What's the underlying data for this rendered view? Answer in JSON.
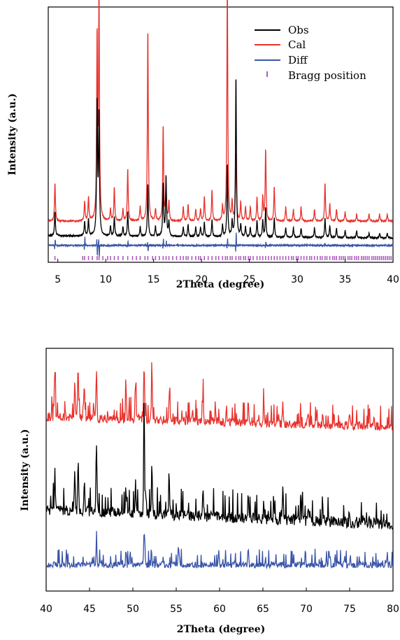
{
  "chart_data": [
    {
      "type": "line",
      "xlabel": "2Theta (degree)",
      "ylabel": "Intensity (a.u.)",
      "xlim": [
        4,
        40
      ],
      "x_ticks": [
        5,
        10,
        15,
        20,
        25,
        30,
        35,
        40
      ],
      "y_ticks_shown": false,
      "legend_position": "top-right",
      "legend": [
        {
          "name": "Obs",
          "color": "#000000",
          "kind": "line"
        },
        {
          "name": "Cal",
          "color": "#e8322d",
          "kind": "line"
        },
        {
          "name": "Diff",
          "color": "#3a55a8",
          "kind": "line"
        },
        {
          "name": "Bragg position",
          "color": "#b05bc0",
          "kind": "tick"
        }
      ],
      "series": [
        {
          "name": "Cal",
          "color": "#e8322d",
          "baseline": 0.17,
          "peaks": [
            [
              4.7,
              0.16
            ],
            [
              7.8,
              0.08
            ],
            [
              8.2,
              0.1
            ],
            [
              9.1,
              0.75
            ],
            [
              9.3,
              0.95
            ],
            [
              10.5,
              0.05
            ],
            [
              10.9,
              0.14
            ],
            [
              11.8,
              0.05
            ],
            [
              12.3,
              0.22
            ],
            [
              13.6,
              0.06
            ],
            [
              14.4,
              0.8
            ],
            [
              15.2,
              0.05
            ],
            [
              16.0,
              0.4
            ],
            [
              16.3,
              0.14
            ],
            [
              16.6,
              0.08
            ],
            [
              18.1,
              0.06
            ],
            [
              18.6,
              0.07
            ],
            [
              19.4,
              0.05
            ],
            [
              19.9,
              0.05
            ],
            [
              20.3,
              0.1
            ],
            [
              21.1,
              0.13
            ],
            [
              22.2,
              0.06
            ],
            [
              22.7,
              1.0
            ],
            [
              23.2,
              0.08
            ],
            [
              23.6,
              0.28
            ],
            [
              24.1,
              0.08
            ],
            [
              24.6,
              0.06
            ],
            [
              25.1,
              0.06
            ],
            [
              25.8,
              0.1
            ],
            [
              26.4,
              0.1
            ],
            [
              26.7,
              0.3
            ],
            [
              27.6,
              0.14
            ],
            [
              28.8,
              0.06
            ],
            [
              29.6,
              0.05
            ],
            [
              30.4,
              0.06
            ],
            [
              31.8,
              0.05
            ],
            [
              32.9,
              0.16
            ],
            [
              33.4,
              0.07
            ],
            [
              34.1,
              0.05
            ],
            [
              35.0,
              0.04
            ],
            [
              36.2,
              0.03
            ],
            [
              37.5,
              0.03
            ],
            [
              38.6,
              0.03
            ],
            [
              39.4,
              0.03
            ]
          ]
        },
        {
          "name": "Obs",
          "color": "#000000",
          "baseline": 0.11,
          "peaks": [
            [
              4.7,
              0.1
            ],
            [
              7.8,
              0.06
            ],
            [
              8.2,
              0.07
            ],
            [
              9.1,
              0.55
            ],
            [
              9.3,
              0.5
            ],
            [
              10.5,
              0.04
            ],
            [
              10.9,
              0.08
            ],
            [
              11.8,
              0.04
            ],
            [
              12.3,
              0.1
            ],
            [
              13.6,
              0.04
            ],
            [
              14.4,
              0.22
            ],
            [
              15.2,
              0.04
            ],
            [
              16.0,
              0.22
            ],
            [
              16.3,
              0.25
            ],
            [
              16.6,
              0.06
            ],
            [
              18.1,
              0.04
            ],
            [
              18.6,
              0.05
            ],
            [
              19.4,
              0.04
            ],
            [
              19.9,
              0.04
            ],
            [
              20.3,
              0.06
            ],
            [
              21.1,
              0.07
            ],
            [
              22.2,
              0.05
            ],
            [
              22.7,
              0.3
            ],
            [
              23.2,
              0.06
            ],
            [
              23.6,
              0.67
            ],
            [
              24.1,
              0.05
            ],
            [
              24.6,
              0.04
            ],
            [
              25.1,
              0.04
            ],
            [
              25.8,
              0.07
            ],
            [
              26.4,
              0.07
            ],
            [
              26.7,
              0.12
            ],
            [
              27.6,
              0.08
            ],
            [
              28.8,
              0.04
            ],
            [
              29.6,
              0.04
            ],
            [
              30.4,
              0.04
            ],
            [
              31.8,
              0.04
            ],
            [
              32.9,
              0.08
            ],
            [
              33.4,
              0.05
            ],
            [
              34.1,
              0.04
            ],
            [
              35.0,
              0.03
            ],
            [
              36.2,
              0.03
            ],
            [
              37.5,
              0.02
            ],
            [
              38.6,
              0.02
            ],
            [
              39.4,
              0.02
            ]
          ]
        },
        {
          "name": "Diff",
          "color": "#3a55a8",
          "baseline": 0.07,
          "features": [
            [
              4.7,
              0.03
            ],
            [
              7.8,
              0.04
            ],
            [
              9.1,
              -0.05
            ],
            [
              9.3,
              -0.06
            ],
            [
              12.3,
              0.02
            ],
            [
              14.4,
              -0.03
            ],
            [
              16.0,
              0.03
            ],
            [
              16.3,
              0.02
            ],
            [
              22.7,
              0.03
            ],
            [
              23.6,
              0.06
            ],
            [
              26.7,
              0.02
            ],
            [
              32.9,
              0.01
            ]
          ]
        }
      ],
      "bragg_positions": [
        4.7,
        7.6,
        7.8,
        8.2,
        8.6,
        9.1,
        9.3,
        9.7,
        10.2,
        10.5,
        10.9,
        11.3,
        11.8,
        12.3,
        12.8,
        13.2,
        13.6,
        14.1,
        14.4,
        14.9,
        15.2,
        15.6,
        16.0,
        16.3,
        16.6,
        17.0,
        17.4,
        17.8,
        18.1,
        18.4,
        18.6,
        19.0,
        19.4,
        19.7,
        19.9,
        20.3,
        20.7,
        21.1,
        21.5,
        21.8,
        22.2,
        22.5,
        22.7,
        23.0,
        23.2,
        23.6,
        23.9,
        24.1,
        24.4,
        24.6,
        24.9,
        25.1,
        25.4,
        25.8,
        26.1,
        26.4,
        26.7,
        27.0,
        27.3,
        27.6,
        27.9,
        28.2,
        28.5,
        28.8,
        29.1,
        29.4,
        29.6,
        29.9,
        30.1,
        30.4,
        30.7,
        31.0,
        31.3,
        31.5,
        31.8,
        32.1,
        32.4,
        32.6,
        32.9,
        33.1,
        33.4,
        33.7,
        33.9,
        34.1,
        34.4,
        34.6,
        34.8,
        35.0,
        35.3,
        35.5,
        35.7,
        36.0,
        36.2,
        36.4,
        36.7,
        36.9,
        37.1,
        37.3,
        37.5,
        37.8,
        38.0,
        38.2,
        38.4,
        38.6,
        38.8,
        39.0,
        39.2,
        39.4,
        39.6,
        39.8
      ]
    },
    {
      "type": "line",
      "xlabel": "2Theta (degree)",
      "ylabel": "Intensity (a.u.)",
      "xlim": [
        40,
        80
      ],
      "x_ticks": [
        40,
        45,
        50,
        55,
        60,
        65,
        70,
        75,
        80
      ],
      "y_ticks_shown": false,
      "series": [
        {
          "name": "Cal",
          "color": "#e8322d",
          "baseline": 0.72,
          "decay": 0.04,
          "noise_amp": 0.07,
          "peaks": [
            [
              41.0,
              0.2
            ],
            [
              43.3,
              0.16
            ],
            [
              43.7,
              0.17
            ],
            [
              44.4,
              0.12
            ],
            [
              45.8,
              0.2
            ],
            [
              49.2,
              0.12
            ],
            [
              50.3,
              0.14
            ],
            [
              51.3,
              0.24
            ],
            [
              52.2,
              0.19
            ],
            [
              54.2,
              0.12
            ],
            [
              58.1,
              0.1
            ],
            [
              63.3,
              0.08
            ],
            [
              65.1,
              0.07
            ],
            [
              67.3,
              0.08
            ],
            [
              70.2,
              0.06
            ],
            [
              71.9,
              0.05
            ],
            [
              75.0,
              0.04
            ]
          ]
        },
        {
          "name": "Obs",
          "color": "#000000",
          "baseline": 0.34,
          "decay": 0.06,
          "noise_amp": 0.09,
          "peaks": [
            [
              41.0,
              0.16
            ],
            [
              43.3,
              0.15
            ],
            [
              43.7,
              0.18
            ],
            [
              44.4,
              0.12
            ],
            [
              45.8,
              0.3
            ],
            [
              49.2,
              0.1
            ],
            [
              50.3,
              0.12
            ],
            [
              51.3,
              0.4
            ],
            [
              52.2,
              0.16
            ],
            [
              54.2,
              0.12
            ],
            [
              58.1,
              0.1
            ],
            [
              63.3,
              0.1
            ],
            [
              65.1,
              0.07
            ],
            [
              67.3,
              0.14
            ],
            [
              70.2,
              0.06
            ],
            [
              71.9,
              0.05
            ],
            [
              75.0,
              0.04
            ]
          ]
        },
        {
          "name": "Diff",
          "color": "#3a55a8",
          "baseline": 0.11,
          "decay": 0.0,
          "noise_amp": 0.05,
          "peaks": [
            [
              45.8,
              0.08
            ],
            [
              51.3,
              0.14
            ],
            [
              55.3,
              0.06
            ],
            [
              59.9,
              0.06
            ],
            [
              63.3,
              0.06
            ]
          ]
        }
      ]
    }
  ]
}
